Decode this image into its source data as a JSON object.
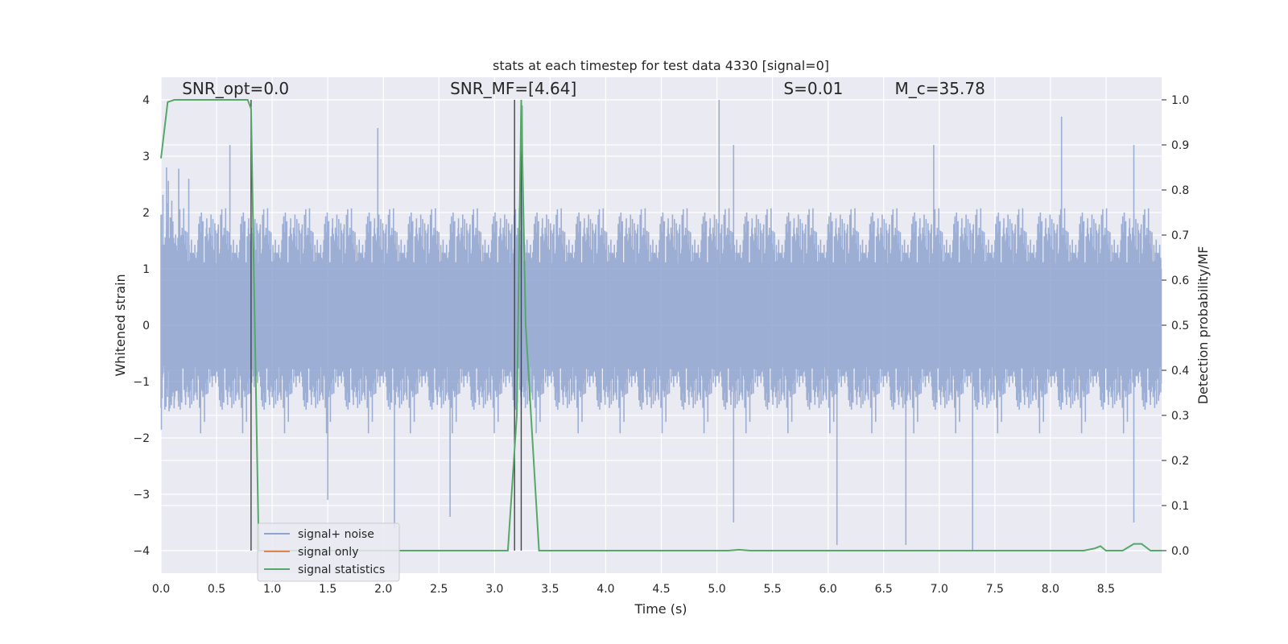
{
  "chart_data": {
    "type": "line",
    "title": "stats at each timestep for test data 4330 [signal=0]",
    "xlabel": "Time (s)",
    "ylabel_left": "Whitened strain",
    "ylabel_right": "Detection probability/MF",
    "xlim": [
      0.0,
      9.0
    ],
    "ylim_left": [
      -4.4,
      4.4
    ],
    "ylim_right": [
      -0.05,
      1.05
    ],
    "x_ticks": [
      "0.0",
      "0.5",
      "1.0",
      "1.5",
      "2.0",
      "2.5",
      "3.0",
      "3.5",
      "4.0",
      "4.5",
      "5.0",
      "5.5",
      "6.0",
      "6.5",
      "7.0",
      "7.5",
      "8.0",
      "8.5"
    ],
    "y_ticks_left": [
      "−4",
      "−3",
      "−2",
      "−1",
      "0",
      "1",
      "2",
      "3",
      "4"
    ],
    "y_ticks_right": [
      "0.0",
      "0.1",
      "0.2",
      "0.3",
      "0.4",
      "0.5",
      "0.6",
      "0.7",
      "0.8",
      "0.9",
      "1.0"
    ],
    "grid": true,
    "legend_position": "lower-left",
    "annotations": [
      {
        "text": "SNR_opt=0.0",
        "x": 0.19
      },
      {
        "text": "SNR_MF=[4.64]",
        "x": 2.6
      },
      {
        "text": "S=0.01",
        "x": 5.6
      },
      {
        "text": "M_c=35.78",
        "x": 6.6
      }
    ],
    "annotation_y": 4.1,
    "vertical_markers": [
      0.81,
      3.18,
      3.24
    ],
    "noise_profile": {
      "band_low": -1.5,
      "band_high": 2.0,
      "spikes_up": [
        [
          0.05,
          2.8
        ],
        [
          0.25,
          2.6
        ],
        [
          0.62,
          3.2
        ],
        [
          1.95,
          3.5
        ],
        [
          3.25,
          3.9
        ],
        [
          5.02,
          4.0
        ],
        [
          5.15,
          3.2
        ],
        [
          6.95,
          3.2
        ],
        [
          8.1,
          3.7
        ],
        [
          8.75,
          3.2
        ]
      ],
      "spikes_down": [
        [
          1.5,
          -3.1
        ],
        [
          2.1,
          -3.6
        ],
        [
          2.6,
          -3.4
        ],
        [
          5.15,
          -3.5
        ],
        [
          6.08,
          -3.9
        ],
        [
          6.7,
          -3.9
        ],
        [
          7.3,
          -4.0
        ],
        [
          8.75,
          -3.5
        ]
      ]
    },
    "series": [
      {
        "name": "signal+ noise",
        "color": "#8fa3cf",
        "axis": "left",
        "style": "bars"
      },
      {
        "name": "signal only",
        "color": "#dd8452",
        "axis": "left",
        "style": "line",
        "x": [],
        "y": []
      },
      {
        "name": "signal statistics",
        "color": "#55a868",
        "axis": "right",
        "style": "line",
        "x": [
          0.0,
          0.06,
          0.12,
          0.7,
          0.78,
          0.81,
          0.84,
          0.88,
          3.12,
          3.2,
          3.24,
          3.28,
          3.4,
          5.1,
          5.2,
          5.3,
          8.3,
          8.4,
          8.45,
          8.5,
          8.65,
          8.75,
          8.82,
          8.9,
          9.0
        ],
        "y": [
          0.87,
          0.995,
          1.0,
          1.0,
          1.0,
          0.98,
          0.55,
          0.0,
          0.0,
          0.3,
          1.0,
          0.5,
          0.0,
          0.0,
          0.002,
          0.0,
          0.0,
          0.005,
          0.01,
          0.0,
          0.0,
          0.015,
          0.015,
          0.0,
          0.0
        ]
      }
    ]
  }
}
